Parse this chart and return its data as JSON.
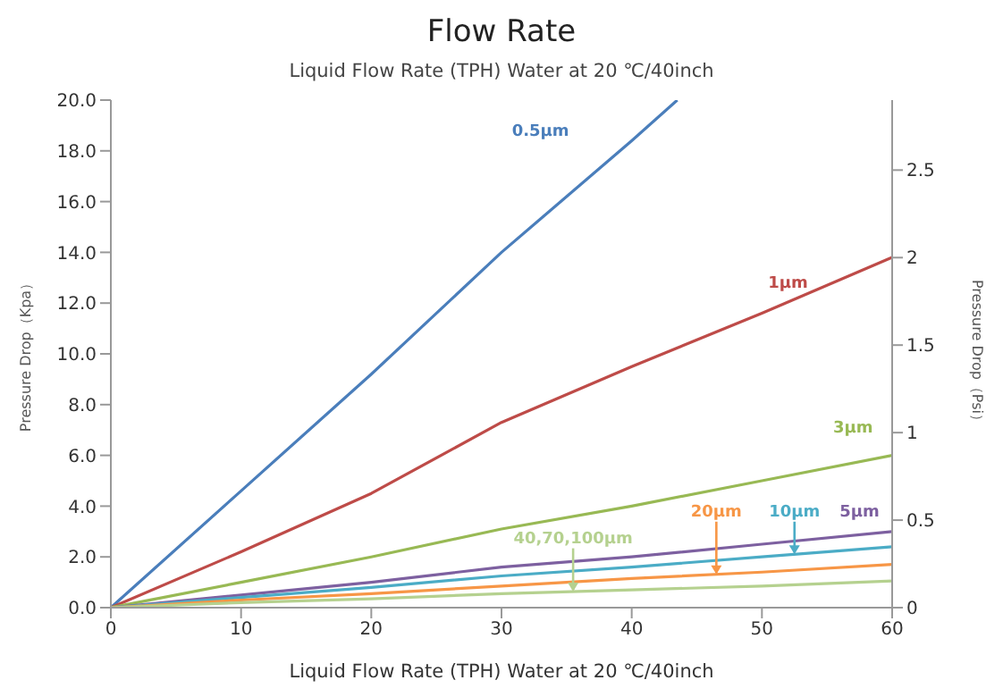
{
  "chart_data": {
    "type": "line",
    "title": "Flow Rate",
    "subtitle": "Liquid Flow Rate (TPH) Water at 20 ℃/40inch",
    "xlabel": "Liquid Flow Rate (TPH) Water at 20 ℃/40inch",
    "ylabel": "Pressure Drop（Kpa）",
    "y2label": "Pressure Drop（Psi）",
    "x": [
      0,
      10,
      20,
      30,
      40,
      50,
      60
    ],
    "series": [
      {
        "name": "0.5µm",
        "color": "#4a7ebb",
        "x": [
          0,
          10,
          20,
          30,
          40,
          43.5
        ],
        "values": [
          0,
          4.6,
          9.2,
          14.0,
          18.4,
          20.0
        ]
      },
      {
        "name": "1µm",
        "color": "#be4b48",
        "values": [
          0,
          2.2,
          4.5,
          7.3,
          9.5,
          11.6,
          13.8
        ]
      },
      {
        "name": "3µm",
        "color": "#98b954",
        "values": [
          0,
          1.0,
          2.0,
          3.1,
          4.0,
          5.0,
          6.0
        ]
      },
      {
        "name": "5µm",
        "color": "#7d60a0",
        "values": [
          0,
          0.5,
          1.0,
          1.6,
          2.0,
          2.5,
          3.0
        ]
      },
      {
        "name": "10µm",
        "color": "#4bacc6",
        "values": [
          0,
          0.4,
          0.8,
          1.25,
          1.6,
          2.0,
          2.4
        ]
      },
      {
        "name": "20µm",
        "color": "#f79646",
        "values": [
          0,
          0.3,
          0.55,
          0.85,
          1.15,
          1.4,
          1.7
        ]
      },
      {
        "name": "40,70,100µm",
        "color": "#b5d18f",
        "values": [
          0,
          0.2,
          0.35,
          0.55,
          0.7,
          0.85,
          1.05
        ]
      }
    ],
    "xlim": [
      0,
      60
    ],
    "xticks": [
      0,
      10,
      20,
      30,
      40,
      50,
      60
    ],
    "ylim": [
      0,
      20
    ],
    "yticks": [
      {
        "value": 0,
        "label": "0.0"
      },
      {
        "value": 2,
        "label": "2.0"
      },
      {
        "value": 4,
        "label": "4.0"
      },
      {
        "value": 6,
        "label": "6.0"
      },
      {
        "value": 8,
        "label": "8.0"
      },
      {
        "value": 10,
        "label": "10.0"
      },
      {
        "value": 12,
        "label": "12.0"
      },
      {
        "value": 14,
        "label": "14.0"
      },
      {
        "value": 16,
        "label": "16.0"
      },
      {
        "value": 18,
        "label": "18.0"
      },
      {
        "value": 20,
        "label": "20.0"
      }
    ],
    "y2lim": [
      0,
      2.9
    ],
    "y2ticks": [
      0,
      0.5,
      1,
      1.5,
      2,
      2.5
    ],
    "grid": false,
    "legend": false,
    "marker": "none",
    "line_style": "solid"
  }
}
